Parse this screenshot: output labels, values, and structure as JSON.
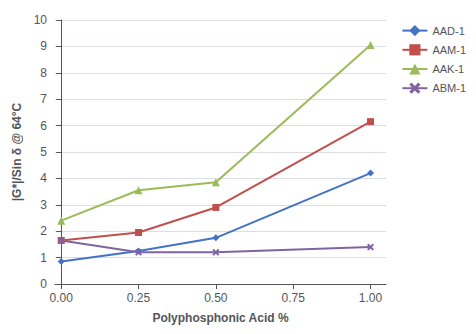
{
  "chart_data": {
    "type": "line",
    "xlabel": "Polyphosphonic Acid %",
    "ylabel": "|G*|/Sin δ @ 64°C",
    "x": [
      0.0,
      0.25,
      0.5,
      1.0
    ],
    "series": [
      {
        "name": "AAD-1",
        "color": "#4472C4",
        "marker": "diamond",
        "values": [
          0.85,
          1.25,
          1.75,
          4.2
        ]
      },
      {
        "name": "AAM-1",
        "color": "#C0504D",
        "marker": "square",
        "values": [
          1.65,
          1.95,
          2.9,
          6.15
        ]
      },
      {
        "name": "AAK-1",
        "color": "#9BBB59",
        "marker": "triangle",
        "values": [
          2.4,
          3.55,
          3.85,
          9.05
        ]
      },
      {
        "name": "ABM-1",
        "color": "#8064A2",
        "marker": "x",
        "values": [
          1.65,
          1.2,
          1.2,
          1.4
        ]
      }
    ],
    "xlim": [
      -0.02,
      1.05
    ],
    "xticks": [
      {
        "value": 0.0,
        "label": "0.00"
      },
      {
        "value": 0.25,
        "label": "0.25"
      },
      {
        "value": 0.5,
        "label": "0.50"
      },
      {
        "value": 0.75,
        "label": "0.75"
      },
      {
        "value": 1.0,
        "label": "1.00"
      }
    ],
    "ylim": [
      0,
      10
    ],
    "yticks": [
      0,
      1,
      2,
      3,
      4,
      5,
      6,
      7,
      8,
      9,
      10
    ],
    "grid": "y",
    "legend": "right"
  }
}
